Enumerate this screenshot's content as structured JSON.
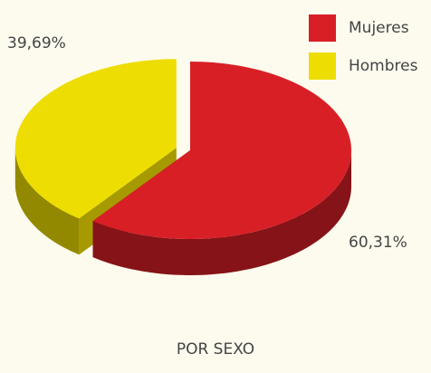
{
  "chart_data": {
    "type": "pie",
    "title": "POR SEXO",
    "categories": [
      "Mujeres",
      "Hombres"
    ],
    "values": [
      60.31,
      39.69
    ],
    "value_labels": [
      "60,31%",
      "39,69%"
    ],
    "colors": [
      "#d91f26",
      "#eedd00"
    ],
    "legend": "top-right"
  }
}
